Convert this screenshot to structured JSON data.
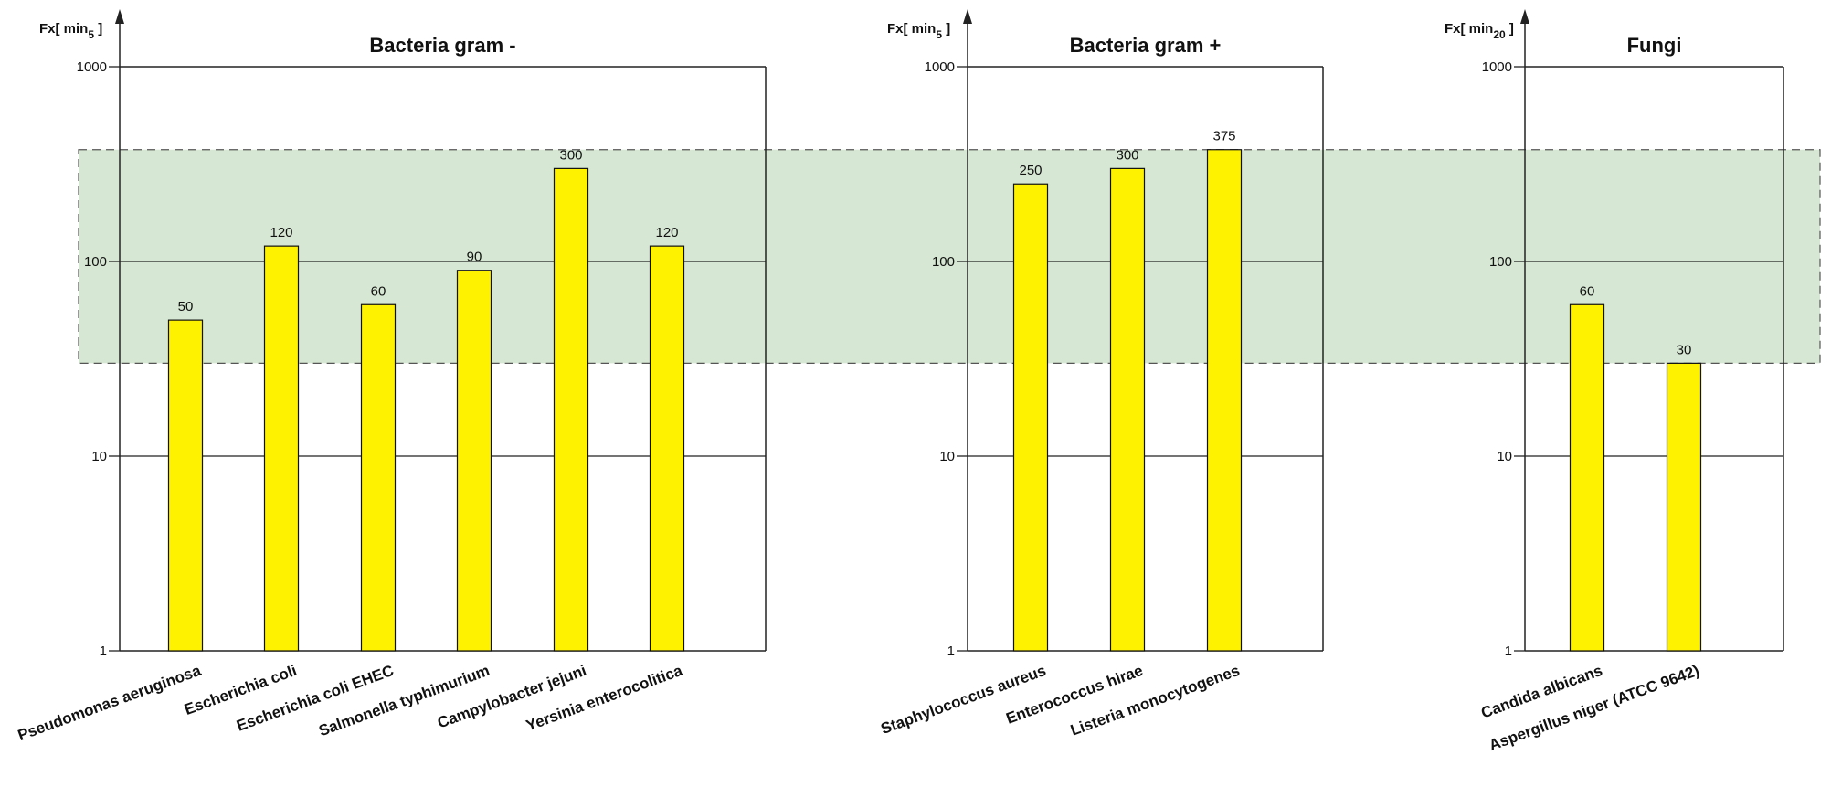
{
  "highlight_band": {
    "y_range": [
      30,
      375
    ],
    "color": "#d6e8d3"
  },
  "bar_color": "#fff200",
  "chart_data": [
    {
      "type": "bar",
      "title": "Bacteria gram -",
      "ylabel": "Fx[ min",
      "ylabel_sub": "5",
      "ylabel_end": " ]",
      "yscale": "log",
      "ylim": [
        1,
        1000
      ],
      "yticks": [
        "1",
        "10",
        "100",
        "1000"
      ],
      "grid": true,
      "categories": [
        "Pseudomonas aeruginosa",
        "Escherichia coli",
        "Escherichia coli EHEC",
        "Salmonella typhimurium",
        "Campylobacter jejuni",
        "Yersinia enterocolitica"
      ],
      "values": [
        50,
        120,
        60,
        90,
        300,
        120
      ],
      "value_labels": [
        "50",
        "120",
        "60",
        "90",
        "300",
        "120"
      ]
    },
    {
      "type": "bar",
      "title": "Bacteria gram +",
      "ylabel": "Fx[ min",
      "ylabel_sub": "5",
      "ylabel_end": " ]",
      "yscale": "log",
      "ylim": [
        1,
        1000
      ],
      "yticks": [
        "1",
        "10",
        "100",
        "1000"
      ],
      "grid": true,
      "categories": [
        "Staphylococcus aureus",
        "Enterococcus hirae",
        "Listeria monocytogenes"
      ],
      "values": [
        250,
        300,
        375
      ],
      "value_labels": [
        "250",
        "300",
        "375"
      ]
    },
    {
      "type": "bar",
      "title": "Fungi",
      "ylabel": "Fx[ min",
      "ylabel_sub": "20",
      "ylabel_end": " ]",
      "yscale": "log",
      "ylim": [
        1,
        1000
      ],
      "yticks": [
        "1",
        "10",
        "100",
        "1000"
      ],
      "grid": true,
      "categories": [
        "Candida albicans",
        "Aspergillus niger (ATCC 9642)"
      ],
      "values": [
        60,
        30
      ],
      "value_labels": [
        "60",
        "30"
      ]
    }
  ]
}
